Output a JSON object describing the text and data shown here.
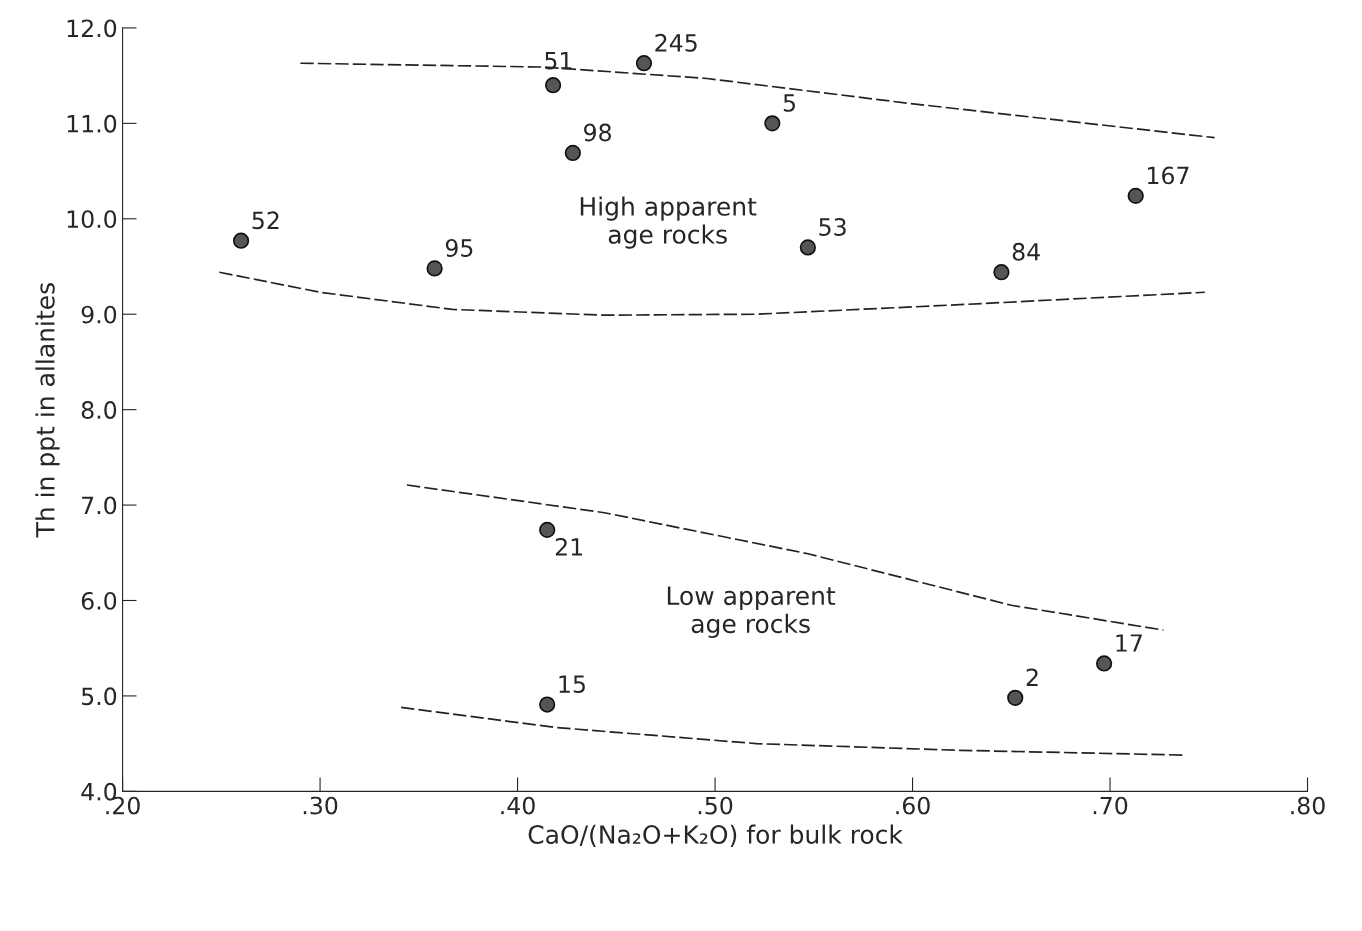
{
  "chart_data": {
    "type": "scatter",
    "xlabel": "CaO/(Na₂O+K₂O) for bulk rock",
    "ylabel": "Th in ppt in allanites",
    "xlim": [
      0.2,
      0.8
    ],
    "xticks": [
      {
        "value": 0.2,
        "label": ".20"
      },
      {
        "value": 0.3,
        "label": ".30"
      },
      {
        "value": 0.4,
        "label": ".40"
      },
      {
        "value": 0.5,
        "label": ".50"
      },
      {
        "value": 0.6,
        "label": ".60"
      },
      {
        "value": 0.7,
        "label": ".70"
      },
      {
        "value": 0.8,
        "label": ".80"
      }
    ],
    "ylim": [
      4.0,
      12.0
    ],
    "yticks": [
      {
        "value": 4,
        "label": "4.0"
      },
      {
        "value": 5,
        "label": "5.0"
      },
      {
        "value": 6,
        "label": "6.0"
      },
      {
        "value": 7,
        "label": "7.0"
      },
      {
        "value": 8,
        "label": "8.0"
      },
      {
        "value": 9,
        "label": "9.0"
      },
      {
        "value": 10,
        "label": "10.0"
      },
      {
        "value": 11,
        "label": "11.0"
      },
      {
        "value": 12,
        "label": "12.0"
      }
    ],
    "grid": false,
    "legend": false,
    "marker": "circle",
    "series": [
      {
        "color": "#555555",
        "x": [
          0.418,
          0.464,
          0.529,
          0.428,
          0.713,
          0.26,
          0.358,
          0.547,
          0.645,
          0.415,
          0.415,
          0.652,
          0.697
        ],
        "values": [
          11.4,
          11.63,
          11.0,
          10.69,
          10.24,
          9.77,
          9.48,
          9.7,
          9.44,
          6.74,
          4.91,
          4.98,
          5.34
        ]
      },
      {
        "type": "line",
        "line_style": "dashed",
        "marker": "none",
        "color": "#222222",
        "x": [
          0.29,
          0.413,
          0.496,
          0.598,
          0.753
        ],
        "values": [
          11.63,
          11.59,
          11.47,
          11.21,
          10.85
        ]
      },
      {
        "type": "line",
        "line_style": "dashed",
        "marker": "none",
        "color": "#222222",
        "x": [
          0.249,
          0.3,
          0.367,
          0.444,
          0.521,
          0.624,
          0.748
        ],
        "values": [
          9.44,
          9.23,
          9.05,
          8.99,
          9.0,
          9.1,
          9.23
        ]
      },
      {
        "type": "line",
        "line_style": "dashed",
        "marker": "none",
        "color": "#222222",
        "x": [
          0.344,
          0.444,
          0.547,
          0.65,
          0.727
        ],
        "values": [
          7.21,
          6.92,
          6.49,
          5.95,
          5.69
        ]
      },
      {
        "type": "line",
        "line_style": "dashed",
        "marker": "none",
        "color": "#222222",
        "x": [
          0.341,
          0.419,
          0.521,
          0.624,
          0.737
        ],
        "values": [
          4.88,
          4.67,
          4.5,
          4.43,
          4.38
        ]
      }
    ],
    "annotations": [
      "High apparent\nage rocks",
      "Low apparent\nage rocks",
      {
        "text": "51",
        "x": 0.418,
        "y": 11.4
      },
      {
        "text": "245",
        "x": 0.464,
        "y": 11.63
      },
      {
        "text": "5",
        "x": 0.529,
        "y": 11.0
      },
      {
        "text": "98",
        "x": 0.428,
        "y": 10.69
      },
      {
        "text": "167",
        "x": 0.713,
        "y": 10.24
      },
      {
        "text": "52",
        "x": 0.26,
        "y": 9.77
      },
      {
        "text": "95",
        "x": 0.358,
        "y": 9.48
      },
      {
        "text": "53",
        "x": 0.547,
        "y": 9.7
      },
      {
        "text": "84",
        "x": 0.645,
        "y": 9.44
      },
      {
        "text": "21",
        "x": 0.415,
        "y": 6.74
      },
      {
        "text": "15",
        "x": 0.415,
        "y": 4.91
      },
      {
        "text": "2",
        "x": 0.652,
        "y": 4.98
      },
      {
        "text": "17",
        "x": 0.697,
        "y": 5.34
      }
    ]
  }
}
